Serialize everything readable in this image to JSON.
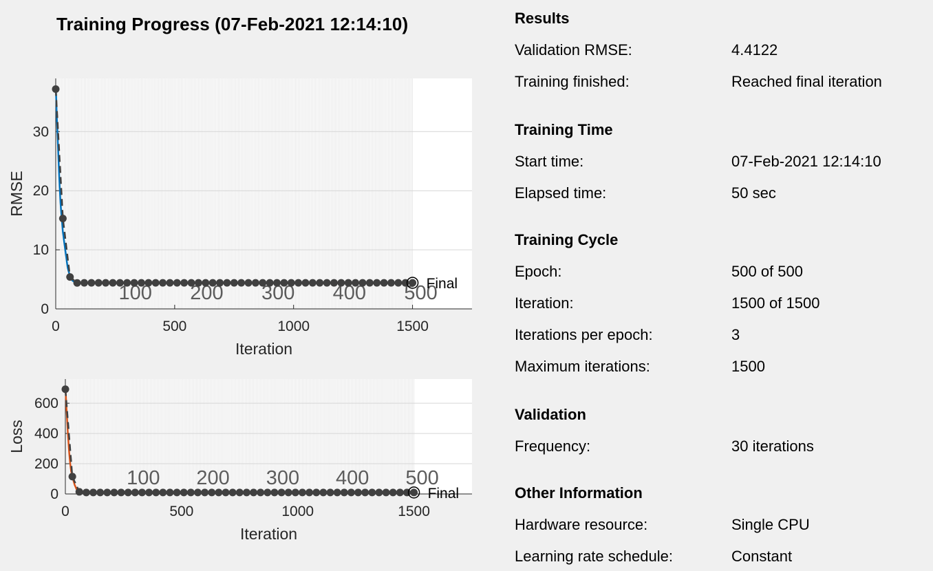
{
  "window": {
    "title": "Training Progress (07-Feb-2021 12:14:10)"
  },
  "colors": {
    "background": "#f0f0f0",
    "rmse_line": "#0072bd",
    "loss_line": "#d95319",
    "validation_line": "#404040",
    "epoch_shade": "#e6e6e6"
  },
  "chart_data": [
    {
      "type": "line",
      "ylabel": "RMSE",
      "xlabel": "Iteration",
      "xlim": [
        0,
        1750
      ],
      "ylim": [
        0,
        39
      ],
      "xticks": [
        0,
        500,
        1000,
        1500
      ],
      "yticks": [
        0,
        10,
        20,
        30
      ],
      "epoch_labels": [
        100,
        200,
        300,
        400,
        500
      ],
      "epoch_label_iterations": [
        300,
        600,
        900,
        1200,
        1500
      ],
      "final_label": "Final",
      "grid": true,
      "training_series": {
        "x": [
          1,
          5,
          10,
          15,
          20,
          25,
          30,
          40,
          50,
          60,
          70,
          80,
          100,
          150,
          300,
          600,
          900,
          1200,
          1500
        ],
        "y": [
          37,
          32,
          27,
          22,
          18,
          15.5,
          13,
          10,
          7,
          5.5,
          4.8,
          4.5,
          4.4,
          4.4,
          4.45,
          4.42,
          4.45,
          4.41,
          4.41
        ]
      },
      "validation_series": {
        "x_start": 0,
        "x_step": 30,
        "count": 51,
        "y": [
          37.2,
          15.3,
          5.4,
          4.4
        ]
      },
      "validation_steady_value": 4.4122,
      "final_value": 4.4122
    },
    {
      "type": "line",
      "ylabel": "Loss",
      "xlabel": "Iteration",
      "xlim": [
        0,
        1750
      ],
      "ylim": [
        0,
        760
      ],
      "xticks": [
        0,
        500,
        1000,
        1500
      ],
      "yticks": [
        0,
        200,
        400,
        600
      ],
      "epoch_labels": [
        100,
        200,
        300,
        400,
        500
      ],
      "epoch_label_iterations": [
        300,
        600,
        900,
        1200,
        1500
      ],
      "final_label": "Final",
      "grid": true,
      "training_series": {
        "x": [
          1,
          5,
          10,
          15,
          20,
          25,
          30,
          40,
          50,
          60,
          70,
          80,
          100,
          150,
          300,
          600,
          900,
          1200,
          1500
        ],
        "y": [
          690,
          560,
          420,
          300,
          210,
          150,
          115,
          60,
          25,
          14,
          10,
          9.5,
          9.5,
          9.7,
          9.6,
          9.7,
          9.6,
          9.7,
          9.7
        ]
      },
      "validation_series": {
        "x_start": 0,
        "x_step": 30,
        "count": 51,
        "y": [
          693,
          115,
          14,
          9.7
        ]
      },
      "validation_steady_value": 9.7,
      "final_value": 9.7
    }
  ],
  "info": {
    "sections": [
      {
        "title": "Results",
        "rows": [
          {
            "label": "Validation RMSE:",
            "value": "4.4122"
          },
          {
            "label": "Training finished:",
            "value": "Reached final iteration"
          }
        ]
      },
      {
        "title": "Training Time",
        "rows": [
          {
            "label": "Start time:",
            "value": "07-Feb-2021 12:14:10"
          },
          {
            "label": "Elapsed time:",
            "value": "50 sec"
          }
        ]
      },
      {
        "title": "Training Cycle",
        "rows": [
          {
            "label": "Epoch:",
            "value": "500 of 500"
          },
          {
            "label": "Iteration:",
            "value": "1500 of 1500"
          },
          {
            "label": "Iterations per epoch:",
            "value": "3"
          },
          {
            "label": "Maximum iterations:",
            "value": "1500"
          }
        ]
      },
      {
        "title": "Validation",
        "rows": [
          {
            "label": "Frequency:",
            "value": "30 iterations"
          }
        ]
      },
      {
        "title": "Other Information",
        "rows": [
          {
            "label": "Hardware resource:",
            "value": "Single CPU"
          },
          {
            "label": "Learning rate schedule:",
            "value": "Constant"
          }
        ]
      }
    ]
  }
}
